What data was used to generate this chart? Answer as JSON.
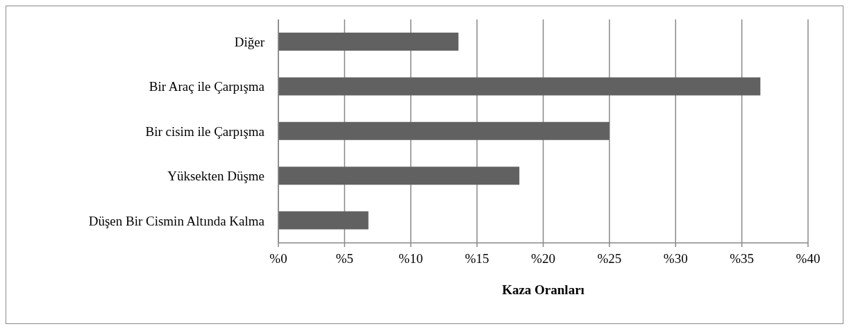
{
  "chart_data": {
    "type": "bar",
    "orientation": "horizontal",
    "xlabel": "Kaza Oranları",
    "categories": [
      "Diğer",
      "Bir Araç ile Çarpışma",
      "Bir cisim ile Çarpışma",
      "Yüksekten Düşme",
      "Düşen Bir Cismin Altında Kalma"
    ],
    "values": [
      13.6,
      36.4,
      25.0,
      18.2,
      6.8
    ],
    "color": "#616161",
    "xlim": [
      0,
      40
    ],
    "xticks": [
      {
        "value": 0,
        "label": "%0"
      },
      {
        "value": 5,
        "label": "%5"
      },
      {
        "value": 10,
        "label": "%10"
      },
      {
        "value": 15,
        "label": "%15"
      },
      {
        "value": 20,
        "label": "%20"
      },
      {
        "value": 25,
        "label": "%25"
      },
      {
        "value": 30,
        "label": "%30"
      },
      {
        "value": 35,
        "label": "%35"
      },
      {
        "value": 40,
        "label": "%40"
      }
    ],
    "grid": "x",
    "legend": false
  }
}
